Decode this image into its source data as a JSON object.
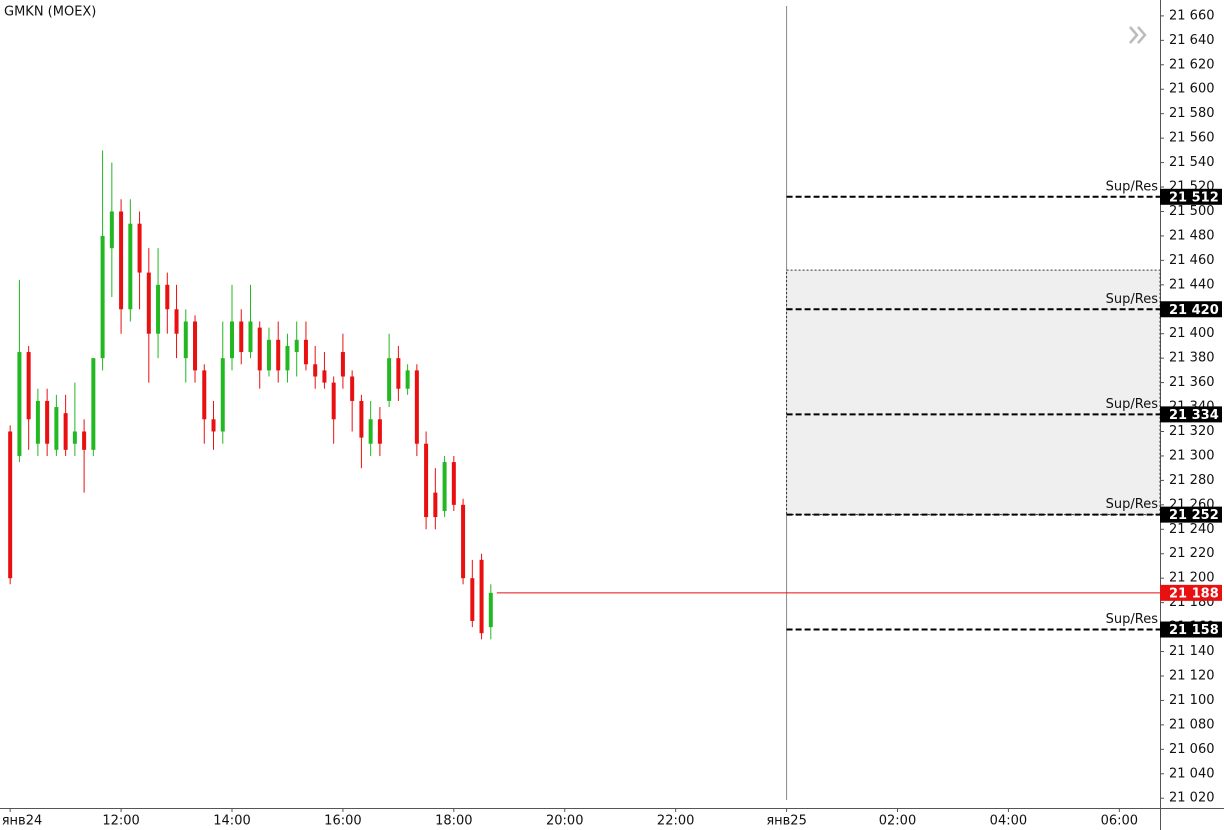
{
  "chart_data": {
    "type": "candlestick",
    "title": "GMKN (MOEX)",
    "up_color": "#22b822",
    "down_color": "#e81010",
    "x": [
      600,
      610,
      620,
      630,
      640,
      650,
      660,
      670,
      680,
      690,
      700,
      710,
      720,
      730,
      740,
      750,
      760,
      770,
      780,
      790,
      800,
      810,
      820,
      830,
      840,
      850,
      860,
      870,
      880,
      890,
      900,
      910,
      920,
      930,
      940,
      950,
      960,
      970,
      980,
      990,
      1000,
      1010,
      1020,
      1030,
      1040,
      1050,
      1060,
      1070,
      1080,
      1090,
      1100,
      1110,
      1120
    ],
    "open": [
      21320,
      21300,
      21385,
      21310,
      21345,
      21305,
      21335,
      21310,
      21320,
      21305,
      21380,
      21470,
      21500,
      21420,
      21490,
      21450,
      21400,
      21440,
      21420,
      21380,
      21410,
      21370,
      21330,
      21320,
      21380,
      21410,
      21385,
      21405,
      21370,
      21395,
      21370,
      21385,
      21395,
      21375,
      21370,
      21360,
      21385,
      21365,
      21345,
      21310,
      21330,
      21345,
      21380,
      21355,
      21370,
      21310,
      21270,
      21255,
      21295,
      21260,
      21200,
      21215,
      21160
    ],
    "high": [
      21325,
      21444,
      21390,
      21355,
      21355,
      21350,
      21350,
      21360,
      21330,
      21380,
      21550,
      21540,
      21510,
      21510,
      21500,
      21470,
      21470,
      21450,
      21440,
      21420,
      21415,
      21375,
      21345,
      21410,
      21440,
      21420,
      21440,
      21410,
      21405,
      21410,
      21400,
      21410,
      21410,
      21390,
      21385,
      21365,
      21400,
      21370,
      21350,
      21345,
      21340,
      21400,
      21390,
      21375,
      21375,
      21320,
      21290,
      21300,
      21300,
      21265,
      21215,
      21220,
      21195
    ],
    "low": [
      21195,
      21295,
      21305,
      21300,
      21300,
      21300,
      21300,
      21300,
      21270,
      21300,
      21370,
      21430,
      21400,
      21410,
      21420,
      21360,
      21380,
      21400,
      21380,
      21360,
      21360,
      21310,
      21305,
      21310,
      21370,
      21375,
      21380,
      21355,
      21365,
      21360,
      21360,
      21365,
      21370,
      21355,
      21355,
      21310,
      21355,
      21320,
      21290,
      21300,
      21300,
      21340,
      21345,
      21350,
      21300,
      21240,
      21240,
      21250,
      21255,
      21195,
      21160,
      21150,
      21150
    ],
    "close": [
      21200,
      21385,
      21330,
      21345,
      21310,
      21340,
      21305,
      21320,
      21305,
      21380,
      21480,
      21500,
      21420,
      21490,
      21450,
      21400,
      21440,
      21420,
      21400,
      21410,
      21370,
      21330,
      21320,
      21380,
      21410,
      21385,
      21410,
      21370,
      21395,
      21370,
      21390,
      21395,
      21375,
      21365,
      21360,
      21330,
      21365,
      21345,
      21315,
      21330,
      21310,
      21380,
      21355,
      21370,
      21310,
      21250,
      21250,
      21295,
      21260,
      21200,
      21165,
      21155,
      21188
    ],
    "xlim": [
      589,
      1844
    ],
    "xticks": [
      {
        "value": 600,
        "label": "янв24"
      },
      {
        "value": 720,
        "label": "12:00"
      },
      {
        "value": 840,
        "label": "14:00"
      },
      {
        "value": 960,
        "label": "16:00"
      },
      {
        "value": 1080,
        "label": "18:00"
      },
      {
        "value": 1200,
        "label": "20:00"
      },
      {
        "value": 1320,
        "label": "22:00"
      },
      {
        "value": 1440,
        "label": "янв25"
      },
      {
        "value": 1560,
        "label": "02:00"
      },
      {
        "value": 1680,
        "label": "04:00"
      },
      {
        "value": 1800,
        "label": "06:00"
      }
    ],
    "ylim": [
      21012,
      21673
    ],
    "yticks": [
      {
        "value": 21020,
        "label": "21 020"
      },
      {
        "value": 21040,
        "label": "21 040"
      },
      {
        "value": 21060,
        "label": "21 060"
      },
      {
        "value": 21080,
        "label": "21 080"
      },
      {
        "value": 21100,
        "label": "21 100"
      },
      {
        "value": 21120,
        "label": "21 120"
      },
      {
        "value": 21140,
        "label": "21 140"
      },
      {
        "value": 21160,
        "label": "21 160"
      },
      {
        "value": 21180,
        "label": "21 180"
      },
      {
        "value": 21200,
        "label": "21 200"
      },
      {
        "value": 21220,
        "label": "21 220"
      },
      {
        "value": 21240,
        "label": "21 240"
      },
      {
        "value": 21260,
        "label": "21 260"
      },
      {
        "value": 21280,
        "label": "21 280"
      },
      {
        "value": 21300,
        "label": "21 300"
      },
      {
        "value": 21320,
        "label": "21 320"
      },
      {
        "value": 21340,
        "label": "21 340"
      },
      {
        "value": 21360,
        "label": "21 360"
      },
      {
        "value": 21380,
        "label": "21 380"
      },
      {
        "value": 21400,
        "label": "21 400"
      },
      {
        "value": 21420,
        "label": "21 420"
      },
      {
        "value": 21440,
        "label": "21 440"
      },
      {
        "value": 21460,
        "label": "21 460"
      },
      {
        "value": 21480,
        "label": "21 480"
      },
      {
        "value": 21500,
        "label": "21 500"
      },
      {
        "value": 21520,
        "label": "21 520"
      },
      {
        "value": 21540,
        "label": "21 540"
      },
      {
        "value": 21560,
        "label": "21 560"
      },
      {
        "value": 21580,
        "label": "21 580"
      },
      {
        "value": 21600,
        "label": "21 600"
      },
      {
        "value": 21620,
        "label": "21 620"
      },
      {
        "value": 21640,
        "label": "21 640"
      },
      {
        "value": 21660,
        "label": "21 660"
      }
    ],
    "zone": {
      "from": 21252,
      "to": 21452
    },
    "levels": [
      {
        "name": "Sup/Res",
        "value": 21512,
        "label": "21 512"
      },
      {
        "name": "Sup/Res",
        "value": 21420,
        "label": "21 420"
      },
      {
        "name": "Sup/Res",
        "value": 21334,
        "label": "21 334"
      },
      {
        "name": "Sup/Res",
        "value": 21252,
        "label": "21 252"
      },
      {
        "name": "Sup/Res",
        "value": 21158,
        "label": "21 158"
      }
    ],
    "last_price": {
      "value": 21188,
      "label": "21 188",
      "color": "#e81010"
    }
  }
}
